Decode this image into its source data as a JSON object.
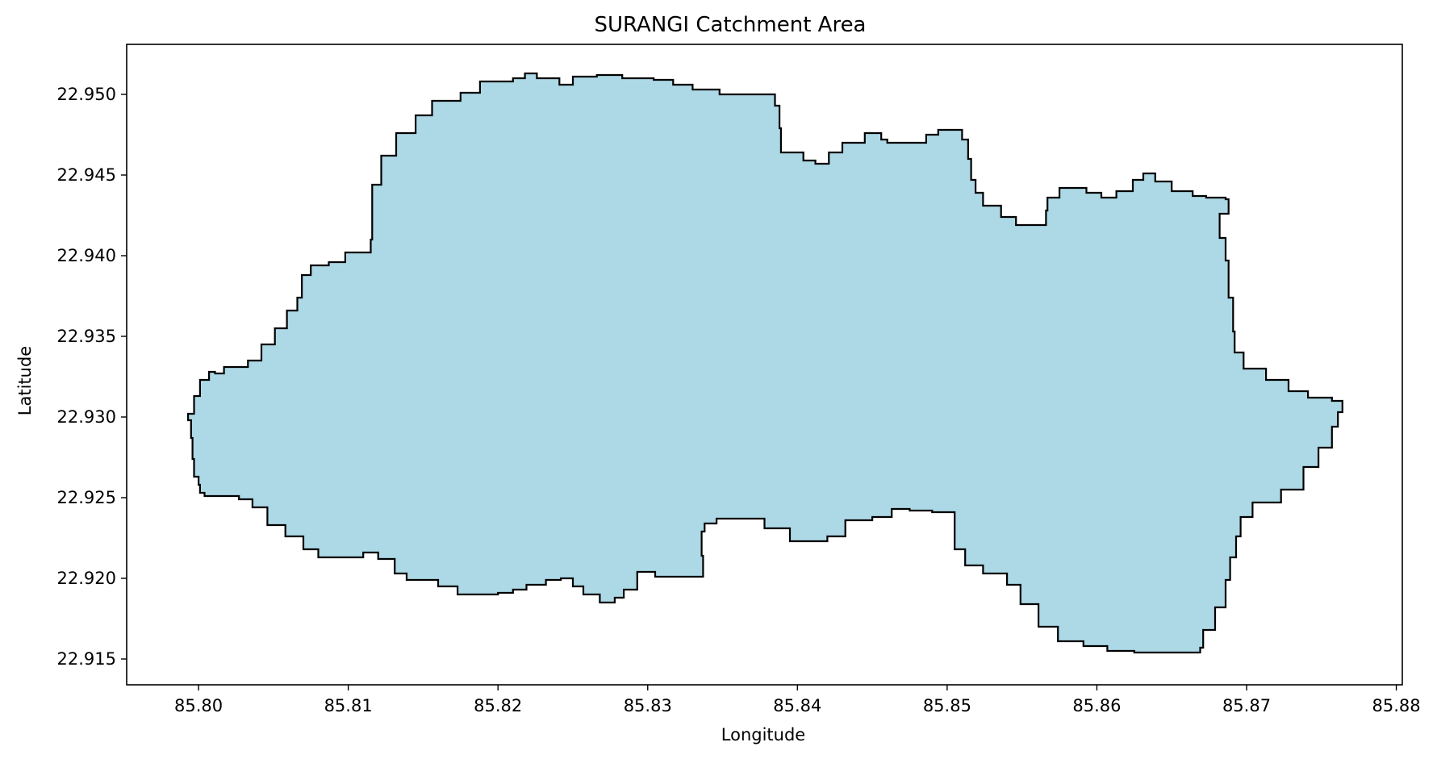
{
  "title": "SURANGI Catchment Area",
  "xlabel": "Longitude",
  "ylabel": "Latitude",
  "colors": {
    "fill": "#add8e6",
    "stroke": "#000000",
    "background": "#ffffff"
  },
  "chart_data": {
    "type": "area",
    "title": "SURANGI Catchment Area",
    "xlabel": "Longitude",
    "ylabel": "Latitude",
    "xlim": [
      85.7952,
      85.8804
    ],
    "ylim": [
      22.9134,
      22.9531
    ],
    "grid": false,
    "legend": "none",
    "xticks": [
      85.8,
      85.81,
      85.82,
      85.83,
      85.84,
      85.85,
      85.86,
      85.87,
      85.88
    ],
    "xtick_labels": [
      "85.80",
      "85.81",
      "85.82",
      "85.83",
      "85.84",
      "85.85",
      "85.86",
      "85.87",
      "85.88"
    ],
    "yticks": [
      22.915,
      22.92,
      22.925,
      22.93,
      22.935,
      22.94,
      22.945,
      22.95
    ],
    "ytick_labels": [
      "22.915",
      "22.920",
      "22.925",
      "22.930",
      "22.935",
      "22.940",
      "22.945",
      "22.950"
    ],
    "series": [
      {
        "name": "SURANGI",
        "polygon": [
          [
            85.7993,
            22.9302
          ],
          [
            85.7997,
            22.9313
          ],
          [
            85.8001,
            22.9323
          ],
          [
            85.8007,
            22.9328
          ],
          [
            85.8011,
            22.9327
          ],
          [
            85.8017,
            22.9331
          ],
          [
            85.8033,
            22.9335
          ],
          [
            85.8042,
            22.9345
          ],
          [
            85.8051,
            22.9355
          ],
          [
            85.8059,
            22.9366
          ],
          [
            85.8066,
            22.9374
          ],
          [
            85.8069,
            22.9388
          ],
          [
            85.8075,
            22.9394
          ],
          [
            85.8087,
            22.9396
          ],
          [
            85.8098,
            22.9402
          ],
          [
            85.8115,
            22.941
          ],
          [
            85.8116,
            22.9444
          ],
          [
            85.8122,
            22.9462
          ],
          [
            85.8132,
            22.9476
          ],
          [
            85.8145,
            22.9487
          ],
          [
            85.8156,
            22.9496
          ],
          [
            85.8175,
            22.9501
          ],
          [
            85.8188,
            22.9508
          ],
          [
            85.821,
            22.951
          ],
          [
            85.8218,
            22.9513
          ],
          [
            85.8226,
            22.951
          ],
          [
            85.8241,
            22.9506
          ],
          [
            85.825,
            22.9511
          ],
          [
            85.8266,
            22.9512
          ],
          [
            85.8283,
            22.951
          ],
          [
            85.8304,
            22.9509
          ],
          [
            85.8317,
            22.9506
          ],
          [
            85.833,
            22.9503
          ],
          [
            85.8348,
            22.95
          ],
          [
            85.838,
            22.95
          ],
          [
            85.8385,
            22.9493
          ],
          [
            85.8388,
            22.9479
          ],
          [
            85.8389,
            22.9464
          ],
          [
            85.8404,
            22.9459
          ],
          [
            85.8412,
            22.9457
          ],
          [
            85.8421,
            22.9464
          ],
          [
            85.843,
            22.947
          ],
          [
            85.8445,
            22.9476
          ],
          [
            85.8456,
            22.9472
          ],
          [
            85.846,
            22.947
          ],
          [
            85.8475,
            22.947
          ],
          [
            85.8486,
            22.9475
          ],
          [
            85.8494,
            22.9478
          ],
          [
            85.8506,
            22.9478
          ],
          [
            85.851,
            22.9472
          ],
          [
            85.8514,
            22.946
          ],
          [
            85.8516,
            22.9447
          ],
          [
            85.8519,
            22.9439
          ],
          [
            85.8524,
            22.9431
          ],
          [
            85.8536,
            22.9424
          ],
          [
            85.8546,
            22.9419
          ],
          [
            85.856,
            22.9419
          ],
          [
            85.8566,
            22.9428
          ],
          [
            85.8567,
            22.9436
          ],
          [
            85.8575,
            22.9442
          ],
          [
            85.8583,
            22.9442
          ],
          [
            85.8593,
            22.9439
          ],
          [
            85.8603,
            22.9436
          ],
          [
            85.8613,
            22.944
          ],
          [
            85.8624,
            22.9447
          ],
          [
            85.8631,
            22.9451
          ],
          [
            85.8639,
            22.9446
          ],
          [
            85.865,
            22.944
          ],
          [
            85.8664,
            22.9437
          ],
          [
            85.8673,
            22.9436
          ],
          [
            85.8686,
            22.9435
          ],
          [
            85.8688,
            22.9426
          ],
          [
            85.8682,
            22.9411
          ],
          [
            85.8686,
            22.9397
          ],
          [
            85.8688,
            22.9374
          ],
          [
            85.8691,
            22.9353
          ],
          [
            85.8692,
            22.934
          ],
          [
            85.8698,
            22.933
          ],
          [
            85.8713,
            22.9323
          ],
          [
            85.8728,
            22.9316
          ],
          [
            85.8741,
            22.9312
          ],
          [
            85.8757,
            22.931
          ],
          [
            85.8764,
            22.9303
          ],
          [
            85.8761,
            22.9294
          ],
          [
            85.8757,
            22.9281
          ],
          [
            85.8748,
            22.9269
          ],
          [
            85.8738,
            22.9255
          ],
          [
            85.8723,
            22.9247
          ],
          [
            85.8704,
            22.9238
          ],
          [
            85.8696,
            22.9226
          ],
          [
            85.8693,
            22.9213
          ],
          [
            85.8689,
            22.9199
          ],
          [
            85.8686,
            22.9182
          ],
          [
            85.8679,
            22.9168
          ],
          [
            85.8671,
            22.9157
          ],
          [
            85.8669,
            22.9154
          ],
          [
            85.8648,
            22.9154
          ],
          [
            85.8625,
            22.9155
          ],
          [
            85.8607,
            22.9158
          ],
          [
            85.8591,
            22.9161
          ],
          [
            85.8574,
            22.917
          ],
          [
            85.8561,
            22.9184
          ],
          [
            85.8549,
            22.9196
          ],
          [
            85.854,
            22.9203
          ],
          [
            85.8524,
            22.9208
          ],
          [
            85.8512,
            22.9218
          ],
          [
            85.8505,
            22.9229
          ],
          [
            85.8505,
            22.9241
          ],
          [
            85.849,
            22.9242
          ],
          [
            85.8475,
            22.9243
          ],
          [
            85.8463,
            22.9238
          ],
          [
            85.845,
            22.9236
          ],
          [
            85.8432,
            22.9226
          ],
          [
            85.842,
            22.9223
          ],
          [
            85.8408,
            22.9223
          ],
          [
            85.8395,
            22.9231
          ],
          [
            85.8378,
            22.9237
          ],
          [
            85.836,
            22.9237
          ],
          [
            85.8346,
            22.9234
          ],
          [
            85.8338,
            22.9229
          ],
          [
            85.8336,
            22.9214
          ],
          [
            85.8337,
            22.9201
          ],
          [
            85.8318,
            22.9201
          ],
          [
            85.8305,
            22.9204
          ],
          [
            85.8293,
            22.9193
          ],
          [
            85.8284,
            22.9188
          ],
          [
            85.8278,
            22.9185
          ],
          [
            85.8268,
            22.919
          ],
          [
            85.8257,
            22.9195
          ],
          [
            85.825,
            22.92
          ],
          [
            85.8242,
            22.9199
          ],
          [
            85.8232,
            22.9196
          ],
          [
            85.8219,
            22.9193
          ],
          [
            85.821,
            22.9191
          ],
          [
            85.82,
            22.919
          ],
          [
            85.8183,
            22.919
          ],
          [
            85.8173,
            22.9195
          ],
          [
            85.816,
            22.9199
          ],
          [
            85.8145,
            22.9199
          ],
          [
            85.8139,
            22.9203
          ],
          [
            85.8131,
            22.9212
          ],
          [
            85.812,
            22.9216
          ],
          [
            85.811,
            22.9213
          ],
          [
            85.8099,
            22.9213
          ],
          [
            85.8092,
            22.9213
          ],
          [
            85.808,
            22.9218
          ],
          [
            85.807,
            22.9226
          ],
          [
            85.8058,
            22.9233
          ],
          [
            85.8046,
            22.9244
          ],
          [
            85.8036,
            22.9249
          ],
          [
            85.8027,
            22.9251
          ],
          [
            85.8012,
            22.9251
          ],
          [
            85.8004,
            22.9253
          ],
          [
            85.8001,
            22.9258
          ],
          [
            85.8,
            22.9263
          ],
          [
            85.7997,
            22.9274
          ],
          [
            85.7996,
            22.9287
          ],
          [
            85.7995,
            22.9298
          ],
          [
            85.7993,
            22.9302
          ]
        ]
      }
    ]
  }
}
